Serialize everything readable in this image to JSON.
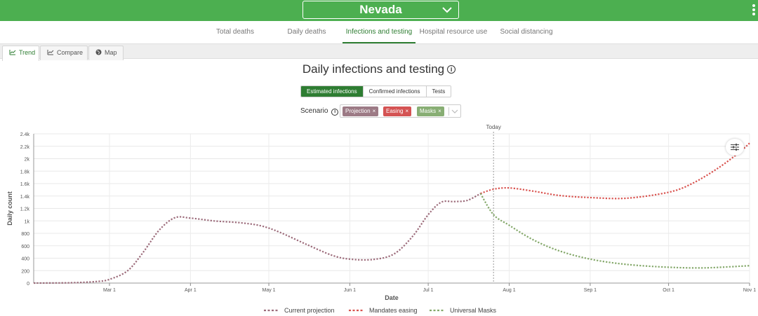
{
  "header": {
    "state": "Nevada"
  },
  "nav": {
    "tabs": [
      {
        "label": "Total deaths",
        "center": 335,
        "width": 80,
        "active": false
      },
      {
        "label": "Daily deaths",
        "center": 437,
        "width": 80,
        "active": false
      },
      {
        "label": "Infections and testing",
        "center": 540,
        "width": 104,
        "active": true
      },
      {
        "label": "Hospital resource use",
        "center": 646,
        "width": 100,
        "active": false
      },
      {
        "label": "Social distancing",
        "center": 750,
        "width": 90,
        "active": false
      }
    ]
  },
  "view_tabs": {
    "trend": "Trend",
    "compare": "Compare",
    "map": "Map"
  },
  "page": {
    "title": "Daily infections and testing",
    "info": "i"
  },
  "measure_toggle": {
    "options": [
      "Estimated infections",
      "Confirmed infections",
      "Tests"
    ],
    "selected": "Estimated infections"
  },
  "scenario": {
    "label": "Scenario",
    "chips": [
      {
        "label": "Projection",
        "color": "#9c7a85"
      },
      {
        "label": "Easing",
        "color": "#d45353"
      },
      {
        "label": "Masks",
        "color": "#88ae74"
      }
    ]
  },
  "chart_data": {
    "type": "line",
    "title": "",
    "xlabel": "Date",
    "ylabel": "Daily count",
    "x_ticks": [
      "Mar 1",
      "Apr 1",
      "May 1",
      "Jun 1",
      "Jul 1",
      "Aug 1",
      "Sep 1",
      "Oct 1",
      "Nov 1"
    ],
    "y_ticks": [
      "0",
      "200",
      "400",
      "600",
      "800",
      "1k",
      "1.2k",
      "1.4k",
      "1.6k",
      "1.8k",
      "2k",
      "2.2k",
      "2.4k"
    ],
    "ylim": [
      0,
      2400
    ],
    "today_label": "Today",
    "today_date": "Jul 26",
    "grid": true,
    "legend_position": "bottom",
    "series": [
      {
        "name": "Current projection",
        "color": "#9c6b7a",
        "points": [
          [
            "Feb 1",
            0
          ],
          [
            "Feb 15",
            5
          ],
          [
            "Feb 25",
            25
          ],
          [
            "Mar 1",
            60
          ],
          [
            "Mar 8",
            200
          ],
          [
            "Mar 14",
            500
          ],
          [
            "Mar 20",
            850
          ],
          [
            "Mar 26",
            1050
          ],
          [
            "Apr 1",
            1045
          ],
          [
            "Apr 10",
            1000
          ],
          [
            "Apr 20",
            970
          ],
          [
            "Apr 28",
            920
          ],
          [
            "May 5",
            820
          ],
          [
            "May 15",
            630
          ],
          [
            "May 25",
            450
          ],
          [
            "Jun 1",
            385
          ],
          [
            "Jun 10",
            380
          ],
          [
            "Jun 18",
            470
          ],
          [
            "Jun 25",
            750
          ],
          [
            "Jul 1",
            1100
          ],
          [
            "Jul 6",
            1300
          ],
          [
            "Jul 11",
            1310
          ],
          [
            "Jul 16",
            1330
          ],
          [
            "Jul 21",
            1440
          ]
        ]
      },
      {
        "name": "Mandates easing",
        "color": "#d9534f",
        "points": [
          [
            "Jul 21",
            1440
          ],
          [
            "Jul 26",
            1510
          ],
          [
            "Aug 1",
            1530
          ],
          [
            "Aug 10",
            1480
          ],
          [
            "Aug 20",
            1410
          ],
          [
            "Sep 1",
            1375
          ],
          [
            "Sep 15",
            1365
          ],
          [
            "Oct 1",
            1460
          ],
          [
            "Oct 10",
            1600
          ],
          [
            "Oct 20",
            1850
          ],
          [
            "Oct 28",
            2100
          ],
          [
            "Nov 1",
            2250
          ]
        ]
      },
      {
        "name": "Universal Masks",
        "color": "#84a86a",
        "points": [
          [
            "Jul 21",
            1440
          ],
          [
            "Jul 26",
            1100
          ],
          [
            "Aug 1",
            930
          ],
          [
            "Aug 10",
            700
          ],
          [
            "Aug 20",
            520
          ],
          [
            "Sep 1",
            385
          ],
          [
            "Sep 15",
            300
          ],
          [
            "Oct 1",
            255
          ],
          [
            "Oct 15",
            245
          ],
          [
            "Nov 1",
            280
          ]
        ]
      }
    ]
  }
}
